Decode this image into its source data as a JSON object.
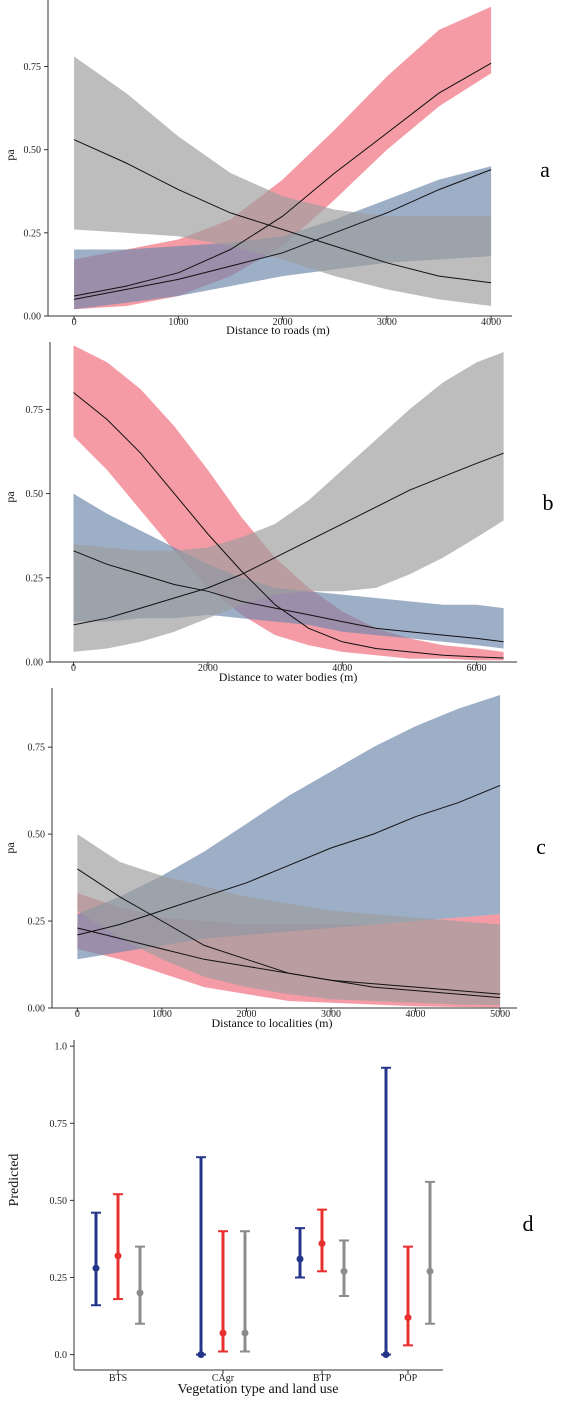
{
  "colors": {
    "red_band": "#ef6b7a",
    "blue_band": "#6f88ad",
    "gray_band": "#9d9d9d",
    "line": "#111111",
    "point_blue": "#24358a",
    "point_red": "#e8302f",
    "point_gray": "#8c8c8c"
  },
  "chart_data": [
    {
      "type": "area",
      "panel": "a",
      "xlabel": "Distance to roads (m)",
      "ylabel": "pa",
      "xlim": [
        -250,
        4200
      ],
      "ylim": [
        0,
        0.95
      ],
      "xticks": [
        0,
        1000,
        2000,
        3000,
        4000
      ],
      "yticks": [
        0.0,
        0.25,
        0.5,
        0.75
      ],
      "ytick_labels": [
        "0.00",
        "0.25",
        "0.50",
        "0.75"
      ],
      "series": [
        {
          "color": "red",
          "x": [
            0,
            500,
            1000,
            1500,
            2000,
            2500,
            3000,
            3500,
            4000
          ],
          "lower": [
            0.02,
            0.03,
            0.06,
            0.12,
            0.21,
            0.35,
            0.5,
            0.63,
            0.73
          ],
          "mean": [
            0.06,
            0.09,
            0.13,
            0.2,
            0.3,
            0.43,
            0.55,
            0.67,
            0.76
          ],
          "upper": [
            0.17,
            0.2,
            0.23,
            0.29,
            0.41,
            0.56,
            0.72,
            0.86,
            0.93
          ]
        },
        {
          "color": "blue",
          "x": [
            0,
            500,
            1000,
            1500,
            2000,
            2500,
            3000,
            3500,
            4000
          ],
          "lower": [
            0.02,
            0.04,
            0.06,
            0.09,
            0.12,
            0.14,
            0.16,
            0.17,
            0.18
          ],
          "mean": [
            0.05,
            0.08,
            0.11,
            0.15,
            0.19,
            0.25,
            0.31,
            0.38,
            0.44
          ],
          "upper": [
            0.2,
            0.2,
            0.21,
            0.22,
            0.24,
            0.29,
            0.35,
            0.41,
            0.45
          ]
        },
        {
          "color": "gray",
          "x": [
            0,
            500,
            1000,
            1500,
            2000,
            2500,
            3000,
            3500,
            4000
          ],
          "lower": [
            0.26,
            0.25,
            0.24,
            0.21,
            0.17,
            0.12,
            0.08,
            0.05,
            0.03
          ],
          "mean": [
            0.53,
            0.46,
            0.38,
            0.31,
            0.26,
            0.21,
            0.16,
            0.12,
            0.1
          ],
          "upper": [
            0.78,
            0.67,
            0.54,
            0.43,
            0.36,
            0.32,
            0.3,
            0.3,
            0.3
          ]
        }
      ]
    },
    {
      "type": "area",
      "panel": "b",
      "xlabel": "Distance to water bodies (m)",
      "ylabel": "pa",
      "xlim": [
        -350,
        6600
      ],
      "ylim": [
        0,
        0.95
      ],
      "xticks": [
        0,
        2000,
        4000,
        6000
      ],
      "yticks": [
        0.0,
        0.25,
        0.5,
        0.75
      ],
      "ytick_labels": [
        "0.00",
        "0.25",
        "0.50",
        "0.75"
      ],
      "series": [
        {
          "color": "red",
          "x": [
            0,
            500,
            1000,
            1500,
            2000,
            2500,
            3000,
            3500,
            4000,
            4500,
            5000,
            5500,
            6000,
            6400
          ],
          "lower": [
            0.67,
            0.57,
            0.45,
            0.33,
            0.22,
            0.14,
            0.08,
            0.05,
            0.03,
            0.02,
            0.01,
            0.01,
            0.005,
            0.005
          ],
          "mean": [
            0.8,
            0.72,
            0.62,
            0.5,
            0.38,
            0.27,
            0.17,
            0.1,
            0.06,
            0.04,
            0.03,
            0.02,
            0.015,
            0.012
          ],
          "upper": [
            0.94,
            0.89,
            0.81,
            0.7,
            0.57,
            0.43,
            0.31,
            0.22,
            0.15,
            0.1,
            0.07,
            0.05,
            0.04,
            0.03
          ]
        },
        {
          "color": "blue",
          "x": [
            0,
            500,
            1000,
            1500,
            2000,
            2500,
            3000,
            3500,
            4000,
            4500,
            5000,
            5500,
            6000,
            6400
          ],
          "lower": [
            0.12,
            0.12,
            0.13,
            0.13,
            0.14,
            0.13,
            0.12,
            0.11,
            0.09,
            0.08,
            0.07,
            0.06,
            0.05,
            0.04
          ],
          "mean": [
            0.33,
            0.29,
            0.26,
            0.23,
            0.21,
            0.18,
            0.16,
            0.14,
            0.12,
            0.1,
            0.09,
            0.08,
            0.07,
            0.06
          ],
          "upper": [
            0.5,
            0.44,
            0.39,
            0.34,
            0.29,
            0.25,
            0.22,
            0.21,
            0.2,
            0.19,
            0.18,
            0.17,
            0.17,
            0.16
          ]
        },
        {
          "color": "gray",
          "x": [
            0,
            500,
            1000,
            1500,
            2000,
            2500,
            3000,
            3500,
            4000,
            4500,
            5000,
            5500,
            6000,
            6400
          ],
          "lower": [
            0.03,
            0.04,
            0.06,
            0.09,
            0.13,
            0.17,
            0.2,
            0.21,
            0.21,
            0.22,
            0.26,
            0.31,
            0.37,
            0.42
          ],
          "mean": [
            0.11,
            0.13,
            0.16,
            0.19,
            0.22,
            0.26,
            0.31,
            0.36,
            0.41,
            0.46,
            0.51,
            0.55,
            0.59,
            0.62
          ],
          "upper": [
            0.35,
            0.34,
            0.33,
            0.33,
            0.34,
            0.37,
            0.41,
            0.48,
            0.57,
            0.66,
            0.75,
            0.83,
            0.89,
            0.92
          ]
        }
      ]
    },
    {
      "type": "area",
      "panel": "c",
      "xlabel": "Distance to localities (m)",
      "ylabel": "pa",
      "xlim": [
        -300,
        5200
      ],
      "ylim": [
        0,
        0.92
      ],
      "xticks": [
        0,
        1000,
        2000,
        3000,
        4000,
        5000
      ],
      "yticks": [
        0.0,
        0.25,
        0.5,
        0.75
      ],
      "ytick_labels": [
        "0.00",
        "0.25",
        "0.50",
        "0.75"
      ],
      "series": [
        {
          "color": "red",
          "x": [
            0,
            500,
            1000,
            1500,
            2000,
            2500,
            3000,
            3500,
            4000,
            4500,
            5000
          ],
          "lower": [
            0.17,
            0.14,
            0.1,
            0.06,
            0.04,
            0.02,
            0.015,
            0.01,
            0.005,
            0.003,
            0.002
          ],
          "mean": [
            0.23,
            0.2,
            0.17,
            0.14,
            0.12,
            0.1,
            0.08,
            0.07,
            0.06,
            0.05,
            0.04
          ],
          "upper": [
            0.33,
            0.29,
            0.26,
            0.25,
            0.24,
            0.24,
            0.24,
            0.24,
            0.25,
            0.26,
            0.27
          ]
        },
        {
          "color": "blue",
          "x": [
            0,
            500,
            1000,
            1500,
            2000,
            2500,
            3000,
            3500,
            4000,
            4500,
            5000
          ],
          "lower": [
            0.14,
            0.16,
            0.18,
            0.2,
            0.21,
            0.22,
            0.23,
            0.24,
            0.25,
            0.26,
            0.27
          ],
          "mean": [
            0.21,
            0.24,
            0.28,
            0.32,
            0.36,
            0.41,
            0.46,
            0.5,
            0.55,
            0.59,
            0.64
          ],
          "upper": [
            0.27,
            0.32,
            0.38,
            0.45,
            0.53,
            0.61,
            0.68,
            0.75,
            0.81,
            0.86,
            0.9
          ]
        },
        {
          "color": "gray",
          "x": [
            0,
            500,
            1000,
            1500,
            2000,
            2500,
            3000,
            3500,
            4000,
            4500,
            5000
          ],
          "lower": [
            0.28,
            0.2,
            0.14,
            0.09,
            0.06,
            0.04,
            0.025,
            0.02,
            0.015,
            0.01,
            0.008
          ],
          "mean": [
            0.4,
            0.32,
            0.25,
            0.18,
            0.14,
            0.1,
            0.08,
            0.06,
            0.05,
            0.04,
            0.03
          ],
          "upper": [
            0.5,
            0.42,
            0.38,
            0.35,
            0.32,
            0.3,
            0.28,
            0.27,
            0.26,
            0.25,
            0.24
          ]
        }
      ]
    },
    {
      "type": "scatter",
      "panel": "d",
      "xlabel": "Vegetation type and land use",
      "ylabel": "Predicted",
      "categories": [
        "BTS",
        "CAgr",
        "BTP",
        "POP"
      ],
      "ylim": [
        -0.05,
        1.02
      ],
      "yticks": [
        0.0,
        0.25,
        0.5,
        0.75,
        1.0
      ],
      "ytick_labels": [
        "0.0",
        "0.25",
        "0.50",
        "0.75",
        "1.0"
      ],
      "series": [
        {
          "color": "blue",
          "values": [
            0.28,
            0.0,
            0.31,
            0.0
          ],
          "lower": [
            0.16,
            0.0,
            0.25,
            0.0
          ],
          "upper": [
            0.46,
            0.64,
            0.41,
            0.93
          ]
        },
        {
          "color": "red",
          "values": [
            0.32,
            0.07,
            0.36,
            0.12
          ],
          "lower": [
            0.18,
            0.01,
            0.27,
            0.03
          ],
          "upper": [
            0.52,
            0.4,
            0.47,
            0.35
          ]
        },
        {
          "color": "gray",
          "values": [
            0.2,
            0.07,
            0.27,
            0.27
          ],
          "lower": [
            0.1,
            0.01,
            0.19,
            0.1
          ],
          "upper": [
            0.35,
            0.4,
            0.37,
            0.56
          ]
        }
      ]
    }
  ]
}
